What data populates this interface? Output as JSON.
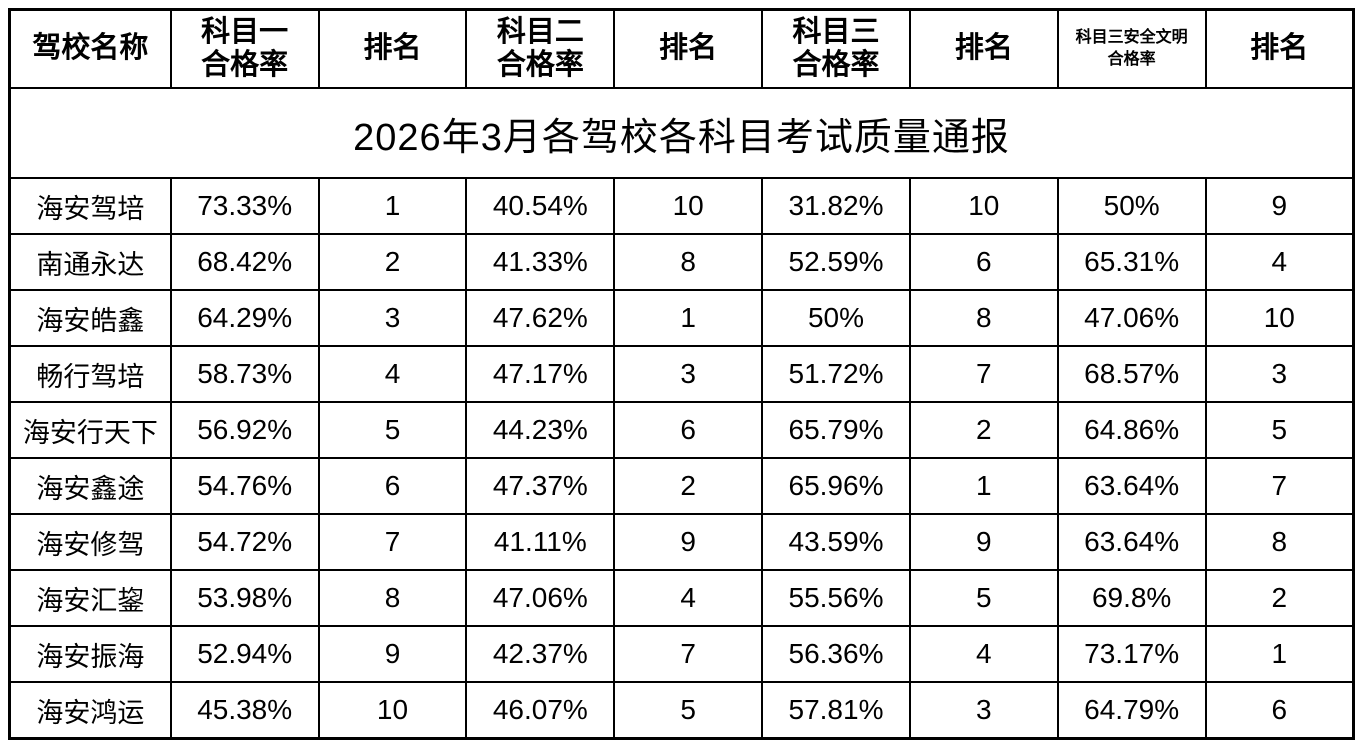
{
  "title": "2026年3月各驾校各科目考试质量通报",
  "colors": {
    "border": "#000000",
    "text": "#000000",
    "background": "#ffffff"
  },
  "table": {
    "columns": [
      {
        "label": "驾校名称",
        "lines": [
          "驾校名称"
        ],
        "small": false
      },
      {
        "label": "科目一合格率",
        "lines": [
          "科目一",
          "合格率"
        ],
        "small": false
      },
      {
        "label": "排名",
        "lines": [
          "排名"
        ],
        "small": false
      },
      {
        "label": "科目二合格率",
        "lines": [
          "科目二",
          "合格率"
        ],
        "small": false
      },
      {
        "label": "排名",
        "lines": [
          "排名"
        ],
        "small": false
      },
      {
        "label": "科目三合格率",
        "lines": [
          "科目三",
          "合格率"
        ],
        "small": false
      },
      {
        "label": "排名",
        "lines": [
          "排名"
        ],
        "small": false
      },
      {
        "label": "科目三安全文明合格率",
        "lines": [
          "科目三安全文明",
          "合格率"
        ],
        "small": true
      },
      {
        "label": "排名",
        "lines": [
          "排名"
        ],
        "small": false
      }
    ],
    "rows": [
      {
        "school": "海安驾培",
        "k1_rate": "73.33%",
        "k1_rank": "1",
        "k2_rate": "40.54%",
        "k2_rank": "10",
        "k3_rate": "31.82%",
        "k3_rank": "10",
        "k3safe_rate": "50%",
        "k3safe_rank": "9"
      },
      {
        "school": "南通永达",
        "k1_rate": "68.42%",
        "k1_rank": "2",
        "k2_rate": "41.33%",
        "k2_rank": "8",
        "k3_rate": "52.59%",
        "k3_rank": "6",
        "k3safe_rate": "65.31%",
        "k3safe_rank": "4"
      },
      {
        "school": "海安皓鑫",
        "k1_rate": "64.29%",
        "k1_rank": "3",
        "k2_rate": "47.62%",
        "k2_rank": "1",
        "k3_rate": "50%",
        "k3_rank": "8",
        "k3safe_rate": "47.06%",
        "k3safe_rank": "10"
      },
      {
        "school": "畅行驾培",
        "k1_rate": "58.73%",
        "k1_rank": "4",
        "k2_rate": "47.17%",
        "k2_rank": "3",
        "k3_rate": "51.72%",
        "k3_rank": "7",
        "k3safe_rate": "68.57%",
        "k3safe_rank": "3"
      },
      {
        "school": "海安行天下",
        "k1_rate": "56.92%",
        "k1_rank": "5",
        "k2_rate": "44.23%",
        "k2_rank": "6",
        "k3_rate": "65.79%",
        "k3_rank": "2",
        "k3safe_rate": "64.86%",
        "k3safe_rank": "5"
      },
      {
        "school": "海安鑫途",
        "k1_rate": "54.76%",
        "k1_rank": "6",
        "k2_rate": "47.37%",
        "k2_rank": "2",
        "k3_rate": "65.96%",
        "k3_rank": "1",
        "k3safe_rate": "63.64%",
        "k3safe_rank": "7"
      },
      {
        "school": "海安修驾",
        "k1_rate": "54.72%",
        "k1_rank": "7",
        "k2_rate": "41.11%",
        "k2_rank": "9",
        "k3_rate": "43.59%",
        "k3_rank": "9",
        "k3safe_rate": "63.64%",
        "k3safe_rank": "8"
      },
      {
        "school": "海安汇鋆",
        "k1_rate": "53.98%",
        "k1_rank": "8",
        "k2_rate": "47.06%",
        "k2_rank": "4",
        "k3_rate": "55.56%",
        "k3_rank": "5",
        "k3safe_rate": "69.8%",
        "k3safe_rank": "2"
      },
      {
        "school": "海安振海",
        "k1_rate": "52.94%",
        "k1_rank": "9",
        "k2_rate": "42.37%",
        "k2_rank": "7",
        "k3_rate": "56.36%",
        "k3_rank": "4",
        "k3safe_rate": "73.17%",
        "k3safe_rank": "1"
      },
      {
        "school": "海安鸿运",
        "k1_rate": "45.38%",
        "k1_rank": "10",
        "k2_rate": "46.07%",
        "k2_rank": "5",
        "k3_rate": "57.81%",
        "k3_rank": "3",
        "k3safe_rate": "64.79%",
        "k3safe_rank": "6"
      }
    ],
    "row_field_order": [
      "school",
      "k1_rate",
      "k1_rank",
      "k2_rate",
      "k2_rank",
      "k3_rate",
      "k3_rank",
      "k3safe_rate",
      "k3safe_rank"
    ]
  }
}
